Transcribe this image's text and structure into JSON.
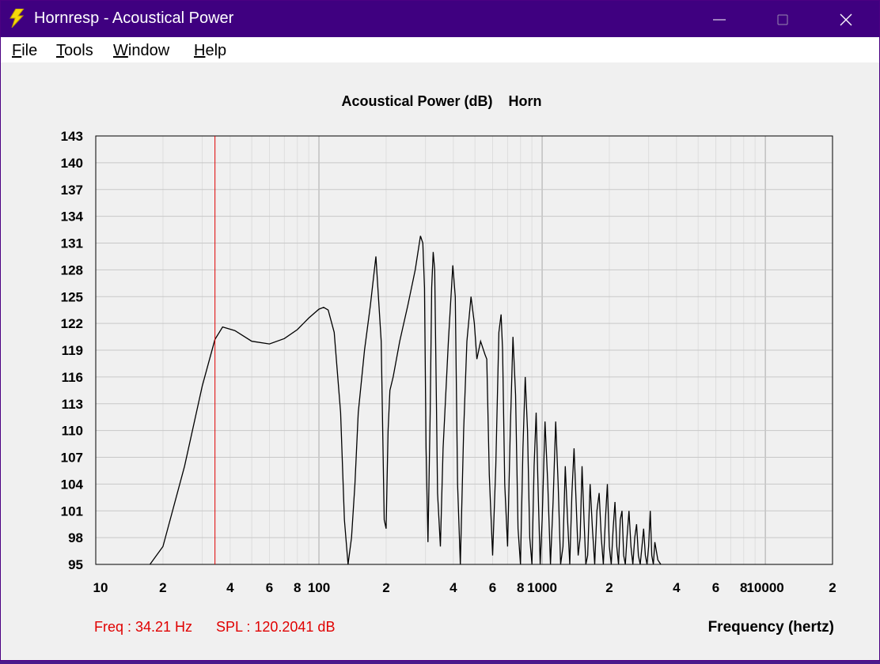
{
  "window": {
    "title": "Hornresp - Acoustical Power",
    "controls": {
      "minimize": "minimize",
      "maximize": "maximize",
      "close": "close"
    }
  },
  "menu": {
    "items": [
      {
        "label": "File",
        "accel": "F",
        "rest": "ile"
      },
      {
        "label": "Tools",
        "accel": "T",
        "rest": "ools"
      },
      {
        "label": "Window",
        "accel": "W",
        "rest": "indow"
      },
      {
        "label": "Help",
        "accel": "H",
        "rest": "elp"
      }
    ]
  },
  "cursor_readout": {
    "freq_text": "Freq : 34.21 Hz",
    "spl_text": "SPL : 120.2041 dB",
    "freq": 34.21,
    "spl": 120.2041
  },
  "colors": {
    "titlebar": "#3f0080",
    "curve": "#000000",
    "cursor": "#e00000",
    "grid": "#c8c8c8"
  },
  "chart_data": {
    "type": "line",
    "title": "Acoustical Power (dB)    Horn",
    "xlabel": "Frequency (hertz)",
    "ylabel": "",
    "xscale": "log",
    "xlim": [
      10,
      20000
    ],
    "ylim": [
      95,
      143
    ],
    "yticks": [
      "143",
      "140",
      "137",
      "134",
      "131",
      "128",
      "125",
      "122",
      "119",
      "116",
      "113",
      "110",
      "107",
      "104",
      "101",
      "98",
      "95"
    ],
    "xticks": [
      {
        "value": 10,
        "label": "10"
      },
      {
        "value": 20,
        "label": "2"
      },
      {
        "value": 40,
        "label": "4"
      },
      {
        "value": 60,
        "label": "6"
      },
      {
        "value": 80,
        "label": "8"
      },
      {
        "value": 100,
        "label": "100"
      },
      {
        "value": 200,
        "label": "2"
      },
      {
        "value": 400,
        "label": "4"
      },
      {
        "value": 600,
        "label": "6"
      },
      {
        "value": 800,
        "label": "8"
      },
      {
        "value": 1000,
        "label": "1000"
      },
      {
        "value": 2000,
        "label": "2"
      },
      {
        "value": 4000,
        "label": "4"
      },
      {
        "value": 6000,
        "label": "6"
      },
      {
        "value": 8000,
        "label": "8"
      },
      {
        "value": 10000,
        "label": "10000"
      },
      {
        "value": 20000,
        "label": "2"
      }
    ],
    "grid": true,
    "cursor_x": 34.21,
    "series": [
      {
        "x": [
          17.5,
          20,
          25,
          30,
          34.21,
          37,
          42,
          50,
          60,
          70,
          80,
          90,
          100,
          105,
          110,
          117,
          125,
          130,
          135,
          140,
          145,
          150,
          160,
          170,
          180,
          190,
          196,
          200,
          204,
          208,
          215,
          230,
          250,
          270,
          285,
          292,
          297,
          302,
          308,
          315,
          320,
          325,
          330,
          336,
          340,
          350,
          360,
          380,
          398,
          408,
          418,
          430,
          445,
          460,
          480,
          497,
          510,
          530,
          555,
          565,
          580,
          600,
          620,
          640,
          655,
          665,
          680,
          700,
          720,
          740,
          760,
          780,
          800,
          820,
          840,
          860,
          880,
          900,
          920,
          940,
          960,
          980,
          1000,
          1030,
          1060,
          1090,
          1120,
          1150,
          1180,
          1210,
          1240,
          1270,
          1300,
          1330,
          1360,
          1390,
          1420,
          1450,
          1480,
          1510,
          1540,
          1570,
          1600,
          1640,
          1680,
          1720,
          1760,
          1800,
          1840,
          1880,
          1920,
          1960,
          2000,
          2040,
          2080,
          2120,
          2160,
          2200,
          2240,
          2280,
          2320,
          2360,
          2400,
          2450,
          2500,
          2550,
          2600,
          2650,
          2700,
          2750,
          2800,
          2850,
          2900,
          2950,
          3000,
          3050,
          3100,
          3150,
          3200,
          3300,
          3400
        ],
        "y": [
          95,
          97,
          106,
          115,
          120.2,
          121.6,
          121.2,
          120,
          119.7,
          120.3,
          121.3,
          122.6,
          123.6,
          123.8,
          123.5,
          121,
          112,
          100,
          95,
          98,
          104,
          112,
          119,
          124,
          129.5,
          120,
          100,
          99,
          110,
          114.5,
          116,
          120,
          124,
          128,
          131.8,
          131,
          126,
          108,
          97.5,
          112,
          126,
          130,
          128,
          113,
          103,
          97,
          108,
          120,
          128.5,
          125,
          104,
          95,
          110,
          120,
          125,
          122,
          118,
          120,
          118.5,
          118,
          105,
          96,
          106,
          121,
          123,
          119,
          104,
          97,
          110,
          120.5,
          114,
          99,
          95,
          108,
          116,
          110,
          98,
          95,
          106,
          112,
          103,
          95,
          100,
          111,
          104,
          95,
          102,
          111,
          104,
          95,
          97,
          106,
          100,
          95,
          103,
          108,
          102,
          96,
          98,
          106,
          100,
          95,
          96,
          104,
          99,
          95,
          101,
          103,
          98,
          95,
          100,
          104,
          97,
          95,
          99,
          102,
          97,
          95,
          100,
          101,
          96,
          95,
          98,
          101,
          97,
          95,
          98,
          99.5,
          96,
          95,
          97,
          99,
          96,
          95,
          97,
          101,
          96,
          95,
          97.5,
          95.5,
          95
        ]
      }
    ]
  }
}
